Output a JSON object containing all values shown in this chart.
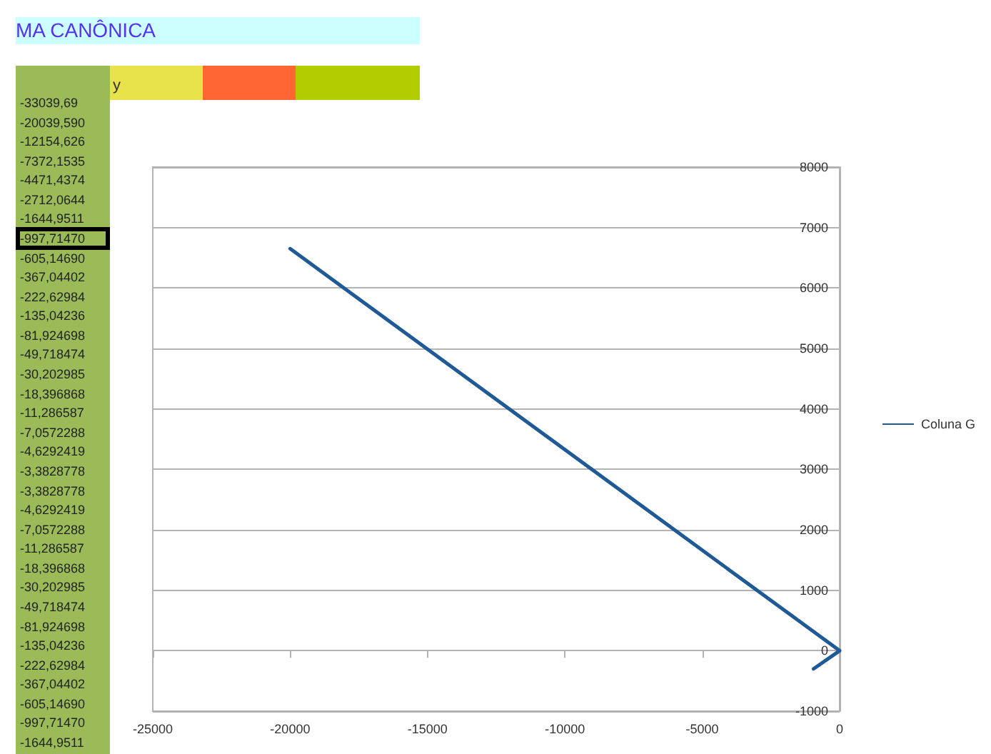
{
  "chart_data": {
    "type": "line",
    "title": "MA CANÔNICA",
    "annotations": [
      "y",
      "-33039,69",
      "-20039,590",
      "-12154,626",
      "-7372,1535",
      "-4471,4374",
      "-2712,0644",
      "-1644,9511",
      "-997,71470",
      "-605,14690",
      "-367,04402",
      "-222,62984",
      "-135,04236",
      "-81,924698",
      "-49,718474",
      "-30,202985",
      "-18,396868",
      "-11,286587",
      "-7,0572288",
      "-4,6292419",
      "-3,3828778",
      "-3,3828778",
      "-4,6292419",
      "-7,0572288",
      "-11,286587",
      "-18,396868",
      "-30,202985",
      "-49,718474",
      "-81,924698",
      "-135,04236",
      "-222,62984",
      "-367,04402",
      "-605,14690",
      "-997,71470",
      "-1644,9511"
    ],
    "series": [
      {
        "name": "Coluna G",
        "color": "#1f5a96",
        "x": [
          -20000,
          0,
          -950
        ],
        "values": [
          6650,
          0,
          -300
        ]
      }
    ],
    "xlim": [
      -25000,
      0
    ],
    "xticks": [
      -25000,
      -20000,
      -15000,
      -10000,
      -5000,
      0
    ],
    "ylim": [
      -1000,
      8000
    ],
    "yticks": [
      -1000,
      0,
      1000,
      2000,
      3000,
      4000,
      5000,
      6000,
      7000,
      8000
    ],
    "grid": "y",
    "legend": "right",
    "marker": "none",
    "line_style": "solid"
  }
}
